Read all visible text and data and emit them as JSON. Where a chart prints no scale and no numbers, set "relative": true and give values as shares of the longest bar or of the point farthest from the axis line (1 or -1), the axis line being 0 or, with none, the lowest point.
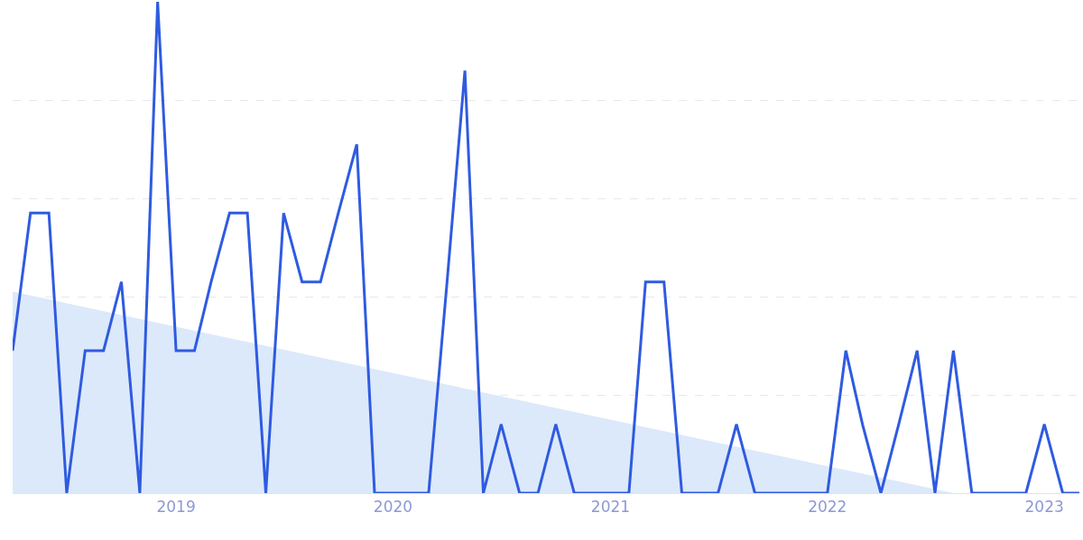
{
  "chart_data": {
    "type": "line",
    "relative": true,
    "grid": "y",
    "legend": false,
    "marker": "none",
    "line_style": "solid",
    "x": [
      "2018-04",
      "2018-05",
      "2018-06",
      "2018-07",
      "2018-08",
      "2018-09",
      "2018-10",
      "2018-11",
      "2018-12",
      "2019-01",
      "2019-02",
      "2019-03",
      "2019-04",
      "2019-05",
      "2019-06",
      "2019-07",
      "2019-08",
      "2019-09",
      "2019-10",
      "2019-11",
      "2019-12",
      "2020-01",
      "2020-02",
      "2020-03",
      "2020-04",
      "2020-05",
      "2020-06",
      "2020-07",
      "2020-08",
      "2020-09",
      "2020-10",
      "2020-11",
      "2020-12",
      "2021-01",
      "2021-02",
      "2021-03",
      "2021-04",
      "2021-05",
      "2021-06",
      "2021-07",
      "2021-08",
      "2021-09",
      "2021-10",
      "2021-11",
      "2021-12",
      "2022-01",
      "2022-02",
      "2022-03",
      "2022-04",
      "2022-05",
      "2022-06",
      "2022-07",
      "2022-08",
      "2022-09",
      "2022-10",
      "2022-11",
      "2022-12",
      "2023-01",
      "2023-02",
      "2023-03"
    ],
    "xlim": [
      "2018-04",
      "2023-03"
    ],
    "xticks": [
      {
        "value": "2019-01",
        "label": "2019"
      },
      {
        "value": "2020-01",
        "label": "2020"
      },
      {
        "value": "2021-01",
        "label": "2021"
      },
      {
        "value": "2022-01",
        "label": "2022"
      },
      {
        "value": "2023-01",
        "label": "2023"
      }
    ],
    "series": [
      {
        "type": "area",
        "color": "#dce9fb",
        "x": [
          "2018-04",
          "2022-08"
        ],
        "values": [
          0.41,
          0
        ]
      },
      {
        "color": "#2f5be0",
        "values": [
          0.29,
          0.57,
          0.57,
          0,
          0.29,
          0.29,
          0.43,
          0,
          1,
          0.29,
          0.29,
          0.43,
          0.57,
          0.57,
          0,
          0.57,
          0.43,
          0.43,
          0.57,
          0.71,
          0,
          0,
          0,
          0,
          0.43,
          0.86,
          0,
          0.14,
          0,
          0,
          0.14,
          0,
          0,
          0,
          0,
          0.43,
          0.43,
          0,
          0,
          0,
          0.14,
          0,
          0,
          0,
          0,
          0,
          0.29,
          0.14,
          0,
          0.14,
          0.29,
          0,
          0.29,
          0,
          0,
          0,
          0,
          0.14,
          0,
          0
        ]
      }
    ]
  }
}
